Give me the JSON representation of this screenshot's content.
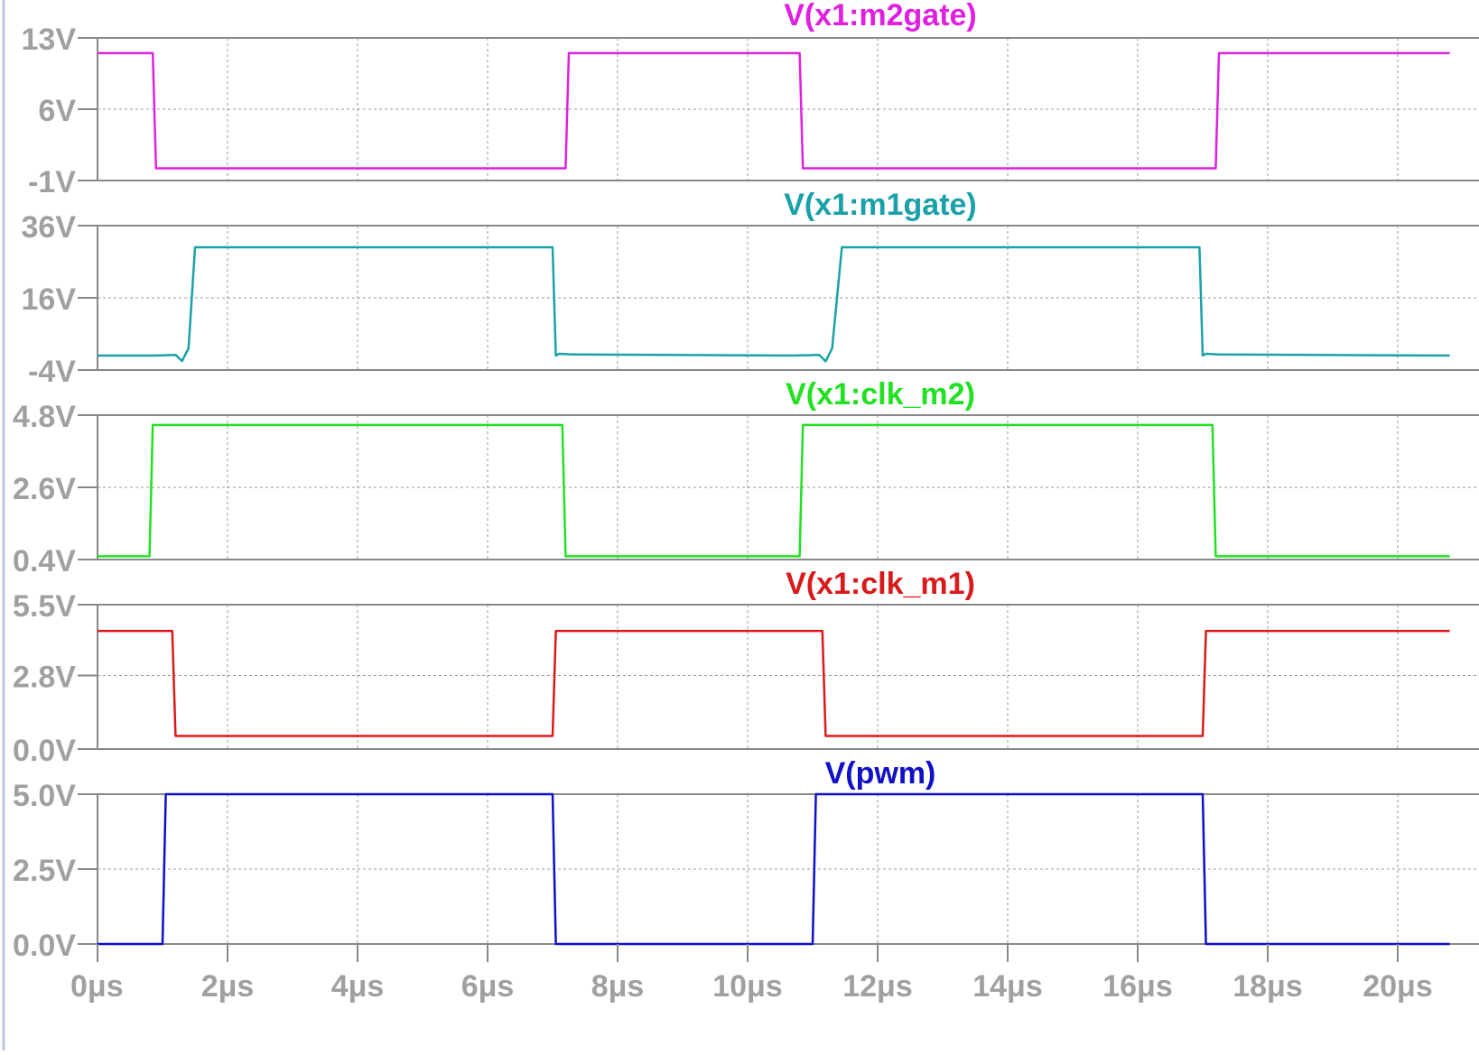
{
  "chart_data": {
    "type": "line",
    "x_unit": "μs",
    "x_range": [
      0,
      20
    ],
    "x_ticks": [
      "0μs",
      "2μs",
      "4μs",
      "6μs",
      "8μs",
      "10μs",
      "12μs",
      "14μs",
      "16μs",
      "18μs",
      "20μs"
    ],
    "grid": true,
    "panels": [
      {
        "title": "V(x1:m2gate)",
        "color": "#e020e0",
        "ylim": [
          -1,
          13
        ],
        "y_ticks": [
          "13V",
          "6V",
          "-1V"
        ],
        "y_tick_values": [
          13,
          6,
          -1
        ],
        "x": [
          0,
          0.85,
          0.9,
          7.2,
          7.25,
          10.8,
          10.85,
          17.2,
          17.25,
          20.8
        ],
        "y": [
          11.5,
          11.5,
          0.2,
          0.2,
          11.5,
          11.5,
          0.2,
          0.2,
          11.5,
          11.5
        ]
      },
      {
        "title": "V(x1:m1gate)",
        "color": "#1aa0a8",
        "ylim": [
          -4,
          36
        ],
        "y_ticks": [
          "36V",
          "16V",
          "-4V"
        ],
        "y_tick_values": [
          36,
          16,
          -4
        ],
        "x": [
          0,
          0.9,
          1.2,
          1.3,
          1.4,
          1.5,
          7.0,
          7.05,
          7.1,
          7.3,
          10.7,
          11.1,
          11.2,
          11.3,
          11.45,
          16.95,
          17.0,
          17.05,
          17.25,
          20.8
        ],
        "y": [
          0,
          0,
          0.2,
          -1.5,
          2,
          30,
          30,
          0,
          0.5,
          0.3,
          0,
          0.2,
          -1.6,
          2,
          30,
          30,
          0,
          0.5,
          0.3,
          0
        ]
      },
      {
        "title": "V(x1:clk_m2)",
        "color": "#22e022",
        "ylim": [
          0.4,
          4.8
        ],
        "y_ticks": [
          "4.8V",
          "2.6V",
          "0.4V"
        ],
        "y_tick_values": [
          4.8,
          2.6,
          0.4
        ],
        "x": [
          0,
          0.8,
          0.85,
          7.15,
          7.2,
          10.8,
          10.85,
          17.15,
          17.2,
          20.8
        ],
        "y": [
          0.5,
          0.5,
          4.5,
          4.5,
          0.5,
          0.5,
          4.5,
          4.5,
          0.5,
          0.5
        ]
      },
      {
        "title": "V(x1:clk_m1)",
        "color": "#d81a1a",
        "ylim": [
          0,
          5.5
        ],
        "y_ticks": [
          "5.5V",
          "2.8V",
          "0.0V"
        ],
        "y_tick_values": [
          5.5,
          2.8,
          0
        ],
        "x": [
          0,
          1.15,
          1.2,
          7.0,
          7.05,
          11.15,
          11.2,
          17.0,
          17.05,
          20.8
        ],
        "y": [
          4.5,
          4.5,
          0.5,
          0.5,
          4.5,
          4.5,
          0.5,
          0.5,
          4.5,
          4.5
        ]
      },
      {
        "title": "V(pwm)",
        "color": "#1010c8",
        "ylim": [
          0,
          5
        ],
        "y_ticks": [
          "5.0V",
          "2.5V",
          "0.0V"
        ],
        "y_tick_values": [
          5,
          2.5,
          0
        ],
        "x": [
          0,
          1.0,
          1.05,
          7.0,
          7.05,
          11.0,
          11.05,
          17.0,
          17.05,
          20.8
        ],
        "y": [
          0,
          0,
          5,
          5,
          0,
          0,
          5,
          5,
          0,
          0
        ]
      }
    ]
  }
}
